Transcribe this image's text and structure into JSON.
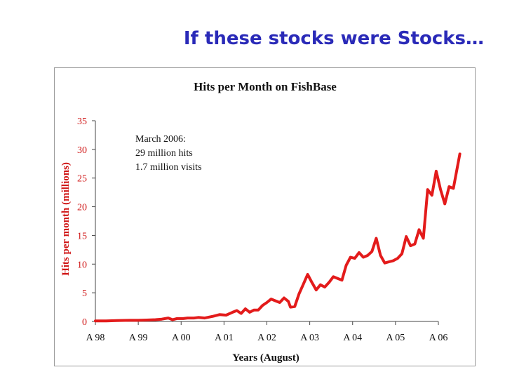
{
  "slide_title": "If these stocks were Stocks…",
  "chart_data": {
    "type": "line",
    "title": "Hits per Month on FishBase",
    "xlabel": "Years (August)",
    "ylabel": "Hits per month (millions)",
    "ylim": [
      0,
      35
    ],
    "yticks": [
      0,
      5,
      10,
      15,
      20,
      25,
      30,
      35
    ],
    "xlim": [
      1998,
      2006
    ],
    "xticks": [
      {
        "x": 1998,
        "label": "A 98"
      },
      {
        "x": 1999,
        "label": "A 99"
      },
      {
        "x": 2000,
        "label": "A 00"
      },
      {
        "x": 2001,
        "label": "A 01"
      },
      {
        "x": 2002,
        "label": "A 02"
      },
      {
        "x": 2003,
        "label": "A 03"
      },
      {
        "x": 2004,
        "label": "A 04"
      },
      {
        "x": 2005,
        "label": "A 05"
      },
      {
        "x": 2006,
        "label": "A 06"
      }
    ],
    "grid": false,
    "line_color": "#e31b1b",
    "annotation": [
      "March 2006:",
      "29 million hits",
      "1.7 million visits"
    ],
    "series": [
      {
        "points": [
          [
            1998.0,
            0.1
          ],
          [
            1998.25,
            0.1
          ],
          [
            1998.5,
            0.15
          ],
          [
            1998.8,
            0.2
          ],
          [
            1999.0,
            0.2
          ],
          [
            1999.2,
            0.25
          ],
          [
            1999.4,
            0.3
          ],
          [
            1999.55,
            0.4
          ],
          [
            1999.7,
            0.6
          ],
          [
            1999.8,
            0.3
          ],
          [
            1999.9,
            0.5
          ],
          [
            2000.05,
            0.5
          ],
          [
            2000.15,
            0.6
          ],
          [
            2000.3,
            0.6
          ],
          [
            2000.4,
            0.7
          ],
          [
            2000.55,
            0.6
          ],
          [
            2000.75,
            0.9
          ],
          [
            2000.9,
            1.2
          ],
          [
            2001.05,
            1.1
          ],
          [
            2001.2,
            1.6
          ],
          [
            2001.3,
            1.9
          ],
          [
            2001.4,
            1.4
          ],
          [
            2001.5,
            2.2
          ],
          [
            2001.6,
            1.6
          ],
          [
            2001.7,
            2.0
          ],
          [
            2001.8,
            2.0
          ],
          [
            2001.9,
            2.8
          ],
          [
            2002.0,
            3.3
          ],
          [
            2002.1,
            3.9
          ],
          [
            2002.2,
            3.6
          ],
          [
            2002.3,
            3.3
          ],
          [
            2002.4,
            4.1
          ],
          [
            2002.5,
            3.5
          ],
          [
            2002.55,
            2.5
          ],
          [
            2002.65,
            2.6
          ],
          [
            2002.75,
            4.8
          ],
          [
            2002.85,
            6.5
          ],
          [
            2002.95,
            8.2
          ],
          [
            2003.05,
            6.8
          ],
          [
            2003.15,
            5.5
          ],
          [
            2003.25,
            6.4
          ],
          [
            2003.35,
            6.0
          ],
          [
            2003.45,
            6.8
          ],
          [
            2003.55,
            7.8
          ],
          [
            2003.65,
            7.5
          ],
          [
            2003.75,
            7.2
          ],
          [
            2003.85,
            9.8
          ],
          [
            2003.95,
            11.2
          ],
          [
            2004.05,
            11.0
          ],
          [
            2004.15,
            12.0
          ],
          [
            2004.25,
            11.2
          ],
          [
            2004.35,
            11.5
          ],
          [
            2004.45,
            12.2
          ],
          [
            2004.55,
            14.5
          ],
          [
            2004.65,
            11.5
          ],
          [
            2004.75,
            10.2
          ],
          [
            2004.85,
            10.4
          ],
          [
            2004.95,
            10.6
          ],
          [
            2005.05,
            11.0
          ],
          [
            2005.15,
            11.8
          ],
          [
            2005.25,
            14.8
          ],
          [
            2005.35,
            13.2
          ],
          [
            2005.45,
            13.5
          ],
          [
            2005.55,
            16.0
          ],
          [
            2005.65,
            14.5
          ],
          [
            2005.75,
            23.0
          ],
          [
            2005.85,
            22.0
          ],
          [
            2005.95,
            26.2
          ],
          [
            2006.05,
            23.0
          ],
          [
            2006.15,
            20.5
          ],
          [
            2006.25,
            23.5
          ],
          [
            2006.35,
            23.2
          ],
          [
            2006.5,
            29.2
          ]
        ]
      }
    ]
  }
}
